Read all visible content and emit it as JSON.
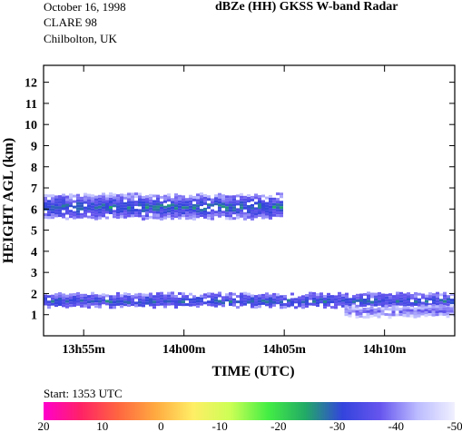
{
  "header": {
    "date": "October 16, 1998",
    "campaign": "CLARE 98",
    "location": "Chilbolton, UK",
    "title": "dBZe (HH)   GKSS  W-band Radar"
  },
  "start_label": "Start: 1353 UTC",
  "colors": {
    "colorbar": [
      "#ff00cc",
      "#ff2266",
      "#ff6640",
      "#ffaa40",
      "#ffee66",
      "#ccff55",
      "#44ee44",
      "#22aa66",
      "#3344dd",
      "#6655ee",
      "#bbbbff",
      "#f0f0ff"
    ]
  },
  "chart_data": {
    "type": "heatmap",
    "title": "dBZe (HH)   GKSS  W-band Radar",
    "xlabel": "TIME (UTC)",
    "ylabel": "HEIGHT AGL (km)",
    "xlim_minutes_after_1353": [
      0,
      20.5
    ],
    "ylim_km": [
      0,
      12.8
    ],
    "x_ticks": [
      {
        "minute": 2,
        "label": "13h55m"
      },
      {
        "minute": 7,
        "label": "14h00m"
      },
      {
        "minute": 12,
        "label": "14h05m"
      },
      {
        "minute": 17,
        "label": "14h10m"
      }
    ],
    "y_ticks": [
      1,
      2,
      3,
      4,
      5,
      6,
      7,
      8,
      9,
      10,
      11,
      12
    ],
    "colorbar": {
      "label_values": [
        "20",
        "10",
        "0",
        "-10",
        "-20",
        "-30",
        "-40",
        "-50"
      ],
      "range_dBZ": [
        20,
        -50
      ]
    },
    "echo_layers": [
      {
        "t_start": 0.0,
        "t_end": 11.9,
        "z_bottom": 5.6,
        "z_top": 6.7,
        "dbz_core": -28,
        "dbz_edge": -42
      },
      {
        "t_start": 0.0,
        "t_end": 20.5,
        "z_bottom": 1.4,
        "z_top": 2.0,
        "dbz_core": -30,
        "dbz_edge": -40
      },
      {
        "t_start": 15.0,
        "t_end": 20.5,
        "z_bottom": 1.0,
        "z_top": 1.4,
        "dbz_core": -38,
        "dbz_edge": -45
      }
    ]
  }
}
